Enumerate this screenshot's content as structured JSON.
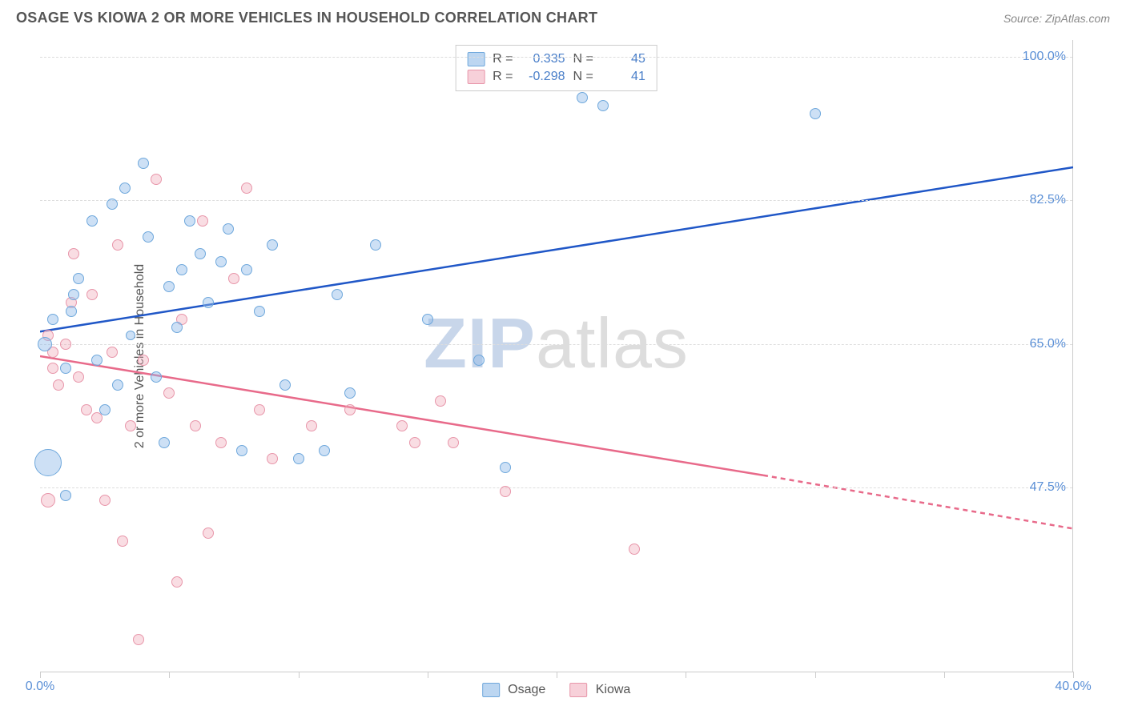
{
  "header": {
    "title": "OSAGE VS KIOWA 2 OR MORE VEHICLES IN HOUSEHOLD CORRELATION CHART",
    "source": "Source: ZipAtlas.com"
  },
  "chart": {
    "ylabel": "2 or more Vehicles in Household",
    "xlim": [
      0,
      40
    ],
    "ylim": [
      25,
      102
    ],
    "xtick_labels": [
      "0.0%",
      "40.0%"
    ],
    "xtick_positions": [
      0,
      40
    ],
    "xtick_minor": [
      5,
      10,
      15,
      20,
      25,
      30,
      35
    ],
    "ytick_labels": [
      "47.5%",
      "65.0%",
      "82.5%",
      "100.0%"
    ],
    "ytick_positions": [
      47.5,
      65,
      82.5,
      100
    ],
    "grid_color": "#dddddd",
    "background_color": "#ffffff",
    "watermark": "ZIPatlas",
    "series": {
      "osage": {
        "label": "Osage",
        "color_fill": "#9fc2e8",
        "color_stroke": "#6fa8dc",
        "trend_color": "#2057c7",
        "trend_solid": [
          [
            0,
            66.5
          ],
          [
            40,
            86.5
          ]
        ],
        "trend_dashed": null,
        "R": "0.335",
        "N": "45",
        "points": [
          [
            0.2,
            65,
            18
          ],
          [
            0.5,
            68,
            14
          ],
          [
            0.3,
            50.5,
            34
          ],
          [
            1,
            46.5,
            14
          ],
          [
            1,
            62,
            14
          ],
          [
            1.2,
            69,
            14
          ],
          [
            1.3,
            71,
            14
          ],
          [
            1.5,
            73,
            14
          ],
          [
            2,
            80,
            14
          ],
          [
            2.2,
            63,
            14
          ],
          [
            2.5,
            57,
            14
          ],
          [
            2.8,
            82,
            14
          ],
          [
            3,
            60,
            14
          ],
          [
            3.3,
            84,
            14
          ],
          [
            3.5,
            66,
            12
          ],
          [
            4,
            87,
            14
          ],
          [
            4.2,
            78,
            14
          ],
          [
            4.5,
            61,
            14
          ],
          [
            4.8,
            53,
            14
          ],
          [
            5,
            72,
            14
          ],
          [
            5.3,
            67,
            14
          ],
          [
            5.5,
            74,
            14
          ],
          [
            5.8,
            80,
            14
          ],
          [
            6.2,
            76,
            14
          ],
          [
            6.5,
            70,
            14
          ],
          [
            7,
            75,
            14
          ],
          [
            7.3,
            79,
            14
          ],
          [
            7.8,
            52,
            14
          ],
          [
            8,
            74,
            14
          ],
          [
            8.5,
            69,
            14
          ],
          [
            9,
            77,
            14
          ],
          [
            9.5,
            60,
            14
          ],
          [
            10,
            51,
            14
          ],
          [
            11,
            52,
            14
          ],
          [
            11.5,
            71,
            14
          ],
          [
            12,
            59,
            14
          ],
          [
            13,
            77,
            14
          ],
          [
            15,
            68,
            14
          ],
          [
            17,
            63,
            14
          ],
          [
            18,
            50,
            14
          ],
          [
            21,
            95,
            14
          ],
          [
            21.8,
            94,
            14
          ],
          [
            30,
            93,
            14
          ]
        ]
      },
      "kiowa": {
        "label": "Kiowa",
        "color_fill": "#f0b6c3",
        "color_stroke": "#e896aa",
        "trend_color": "#e86a8a",
        "trend_solid": [
          [
            0,
            63.5
          ],
          [
            28,
            49
          ]
        ],
        "trend_dashed": [
          [
            28,
            49
          ],
          [
            40,
            42.5
          ]
        ],
        "R": "-0.298",
        "N": "41",
        "points": [
          [
            0.3,
            66,
            14
          ],
          [
            0.5,
            64,
            14
          ],
          [
            0.5,
            62,
            14
          ],
          [
            0.7,
            60,
            14
          ],
          [
            0.3,
            46,
            18
          ],
          [
            1,
            65,
            14
          ],
          [
            1.2,
            70,
            14
          ],
          [
            1.3,
            76,
            14
          ],
          [
            1.5,
            61,
            14
          ],
          [
            1.8,
            57,
            14
          ],
          [
            2,
            71,
            14
          ],
          [
            2.2,
            56,
            14
          ],
          [
            2.5,
            46,
            14
          ],
          [
            2.8,
            64,
            14
          ],
          [
            3,
            77,
            14
          ],
          [
            3.2,
            41,
            14
          ],
          [
            3.5,
            55,
            14
          ],
          [
            3.8,
            29,
            14
          ],
          [
            4,
            63,
            14
          ],
          [
            4.5,
            85,
            14
          ],
          [
            5,
            59,
            14
          ],
          [
            5.3,
            36,
            14
          ],
          [
            5.5,
            68,
            14
          ],
          [
            6,
            55,
            14
          ],
          [
            6.3,
            80,
            14
          ],
          [
            6.5,
            42,
            14
          ],
          [
            7,
            53,
            14
          ],
          [
            7.5,
            73,
            14
          ],
          [
            8,
            84,
            14
          ],
          [
            8.5,
            57,
            14
          ],
          [
            9,
            51,
            14
          ],
          [
            10.5,
            55,
            14
          ],
          [
            12,
            57,
            14
          ],
          [
            14,
            55,
            14
          ],
          [
            14.5,
            53,
            14
          ],
          [
            15.5,
            58,
            14
          ],
          [
            16,
            53,
            14
          ],
          [
            18,
            47,
            14
          ],
          [
            23,
            40,
            14
          ]
        ]
      }
    },
    "legend": {
      "items": [
        "osage",
        "kiowa"
      ]
    }
  }
}
